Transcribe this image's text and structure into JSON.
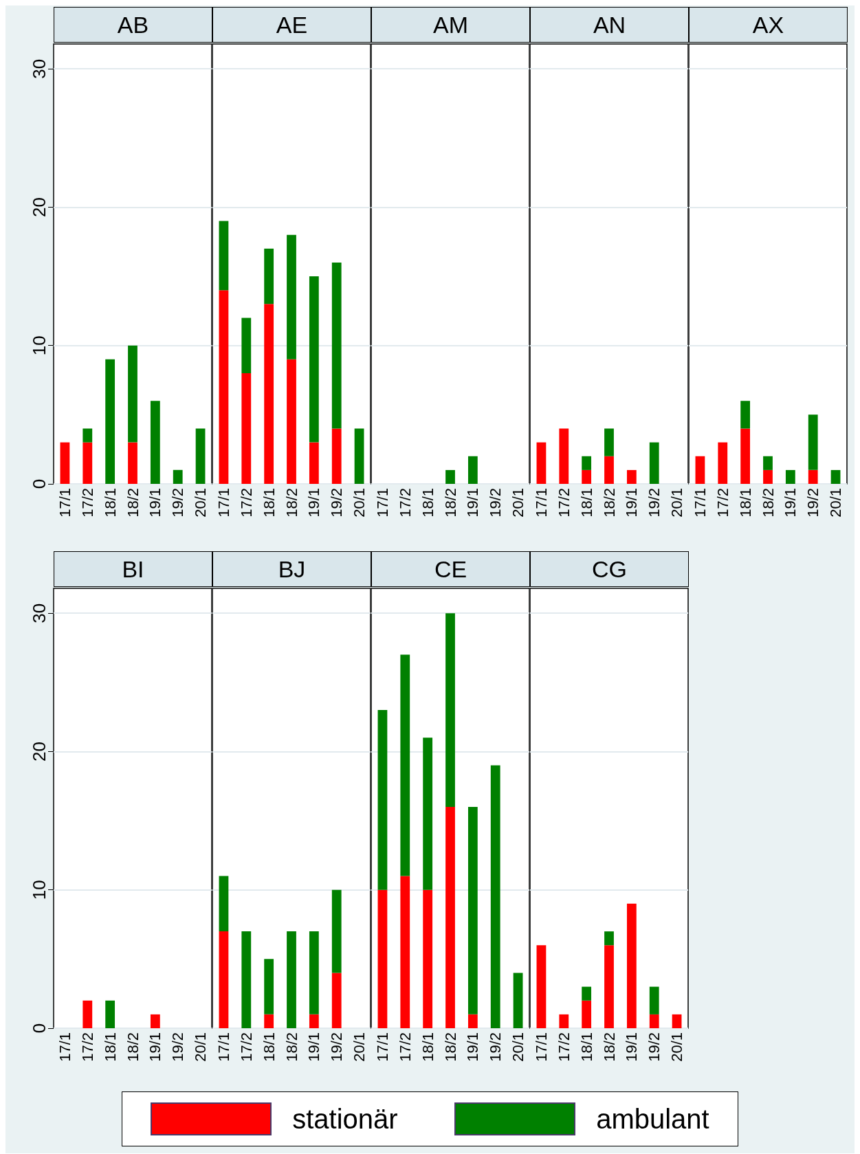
{
  "chart_data": [
    {
      "type": "bar",
      "title": "AB",
      "stacked": true,
      "grid": "y",
      "legend": "bottom",
      "categories": [
        "17/1",
        "17/2",
        "18/1",
        "18/2",
        "19/1",
        "19/2",
        "20/1"
      ],
      "ylim": [
        0,
        31.8
      ],
      "yticks": [
        0,
        10,
        20,
        30
      ],
      "series": [
        {
          "name": "stationär",
          "color": "#ff0000",
          "values": [
            3,
            3,
            null,
            3,
            null,
            null,
            null
          ]
        },
        {
          "name": "ambulant",
          "color": "#008000",
          "values": [
            null,
            1,
            9,
            7,
            6,
            1,
            4
          ]
        }
      ]
    },
    {
      "type": "bar",
      "title": "AE",
      "stacked": true,
      "grid": "y",
      "tick_labels": "x",
      "categories": [
        "17/1",
        "17/2",
        "18/1",
        "18/2",
        "19/1",
        "19/2",
        "20/1"
      ],
      "ylim": [
        0,
        31.8
      ],
      "yticks": [
        0,
        10,
        20,
        30
      ],
      "series": [
        {
          "color": "#ff0000",
          "values": [
            14,
            8,
            13,
            9,
            3,
            4,
            null
          ]
        },
        {
          "color": "#008000",
          "values": [
            5,
            4,
            4,
            9,
            12,
            12,
            4
          ]
        }
      ]
    },
    {
      "type": "bar",
      "title": "AM",
      "stacked": true,
      "grid": "y",
      "tick_labels": "x",
      "categories": [
        "17/1",
        "17/2",
        "18/1",
        "18/2",
        "19/1",
        "19/2",
        "20/1"
      ],
      "ylim": [
        0,
        31.8
      ],
      "yticks": [
        0,
        10,
        20,
        30
      ],
      "series": [
        {
          "color": "#008000",
          "values": [
            null,
            null,
            null,
            1,
            2,
            null,
            null
          ]
        }
      ]
    },
    {
      "type": "bar",
      "title": "AN",
      "stacked": true,
      "grid": "y",
      "tick_labels": "x",
      "categories": [
        "17/1",
        "17/2",
        "18/1",
        "18/2",
        "19/1",
        "19/2",
        "20/1"
      ],
      "ylim": [
        0,
        31.8
      ],
      "yticks": [
        0,
        10,
        20,
        30
      ],
      "series": [
        {
          "color": "#ff0000",
          "values": [
            3,
            4,
            1,
            2,
            1,
            null,
            null
          ]
        },
        {
          "color": "#008000",
          "values": [
            null,
            null,
            1,
            2,
            null,
            3,
            null
          ]
        }
      ]
    },
    {
      "type": "bar",
      "title": "AX",
      "stacked": true,
      "grid": "y",
      "tick_labels": "x",
      "categories": [
        "17/1",
        "17/2",
        "18/1",
        "18/2",
        "19/1",
        "19/2",
        "20/1"
      ],
      "ylim": [
        0,
        31.8
      ],
      "yticks": [
        0,
        10,
        20,
        30
      ],
      "series": [
        {
          "color": "#ff0000",
          "values": [
            2,
            3,
            4,
            1,
            null,
            1,
            null
          ]
        },
        {
          "color": "#008000",
          "values": [
            null,
            null,
            2,
            1,
            1,
            4,
            1
          ]
        }
      ]
    },
    {
      "type": "bar",
      "title": "BI",
      "stacked": true,
      "grid": "y",
      "categories": [
        "17/1",
        "17/2",
        "18/1",
        "18/2",
        "19/1",
        "19/2",
        "20/1"
      ],
      "ylim": [
        0,
        31.8
      ],
      "yticks": [
        0,
        10,
        20,
        30
      ],
      "series": [
        {
          "color": "#ff0000",
          "values": [
            null,
            2,
            null,
            null,
            1,
            null,
            null
          ]
        },
        {
          "color": "#008000",
          "values": [
            null,
            null,
            2,
            null,
            null,
            null,
            null
          ]
        }
      ]
    },
    {
      "type": "bar",
      "title": "BJ",
      "stacked": true,
      "grid": "y",
      "tick_labels": "x",
      "categories": [
        "17/1",
        "17/2",
        "18/1",
        "18/2",
        "19/1",
        "19/2",
        "20/1"
      ],
      "ylim": [
        0,
        31.8
      ],
      "yticks": [
        0,
        10,
        20,
        30
      ],
      "series": [
        {
          "color": "#ff0000",
          "values": [
            7,
            null,
            1,
            null,
            1,
            4,
            null
          ]
        },
        {
          "color": "#008000",
          "values": [
            4,
            7,
            4,
            7,
            6,
            6,
            null
          ]
        }
      ]
    },
    {
      "type": "bar",
      "title": "CE",
      "stacked": true,
      "grid": "y",
      "tick_labels": "x",
      "categories": [
        "17/1",
        "17/2",
        "18/1",
        "18/2",
        "19/1",
        "19/2",
        "20/1"
      ],
      "ylim": [
        0,
        31.8
      ],
      "yticks": [
        0,
        10,
        20,
        30
      ],
      "series": [
        {
          "color": "#ff0000",
          "values": [
            10,
            11,
            10,
            16,
            1,
            null,
            null
          ]
        },
        {
          "color": "#008000",
          "values": [
            13,
            16,
            11,
            14,
            15,
            19,
            4
          ]
        }
      ]
    },
    {
      "type": "bar",
      "title": "CG",
      "stacked": true,
      "grid": "y",
      "tick_labels": "x",
      "categories": [
        "17/1",
        "17/2",
        "18/1",
        "18/2",
        "19/1",
        "19/2",
        "20/1"
      ],
      "ylim": [
        0,
        31.8
      ],
      "yticks": [
        0,
        10,
        20,
        30
      ],
      "series": [
        {
          "color": "#ff0000",
          "values": [
            6,
            1,
            2,
            6,
            9,
            1,
            1
          ]
        },
        {
          "color": "#008000",
          "values": [
            null,
            null,
            1,
            1,
            null,
            2,
            null
          ]
        }
      ]
    }
  ]
}
